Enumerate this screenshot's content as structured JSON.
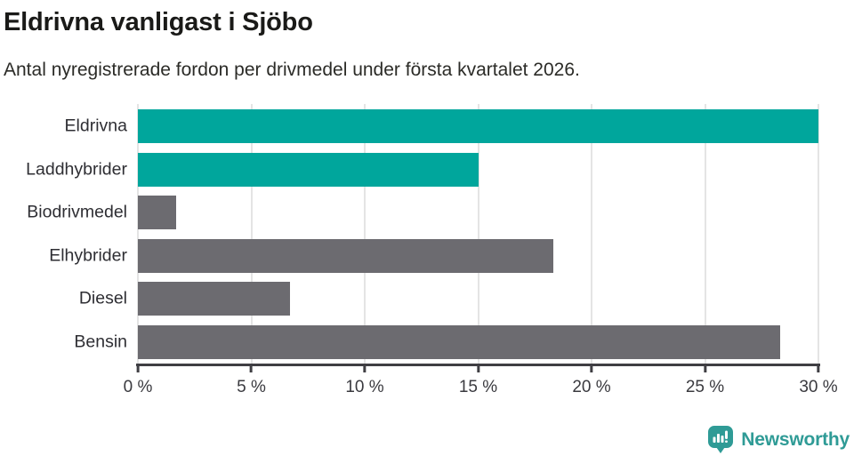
{
  "chart_data": {
    "type": "bar",
    "orientation": "horizontal",
    "title": "Eldrivna vanligast i Sjöbo",
    "subtitle": "Antal nyregistrerade fordon per drivmedel under första kvartalet 2026.",
    "categories": [
      "Eldrivna",
      "Laddhybrider",
      "Biodrivmedel",
      "Elhybrider",
      "Diesel",
      "Bensin"
    ],
    "values": [
      30,
      15,
      1.7,
      18.3,
      6.7,
      28.3
    ],
    "unit": "%",
    "bar_colors": [
      "#00a69c",
      "#00a69c",
      "#6c6b70",
      "#6c6b70",
      "#6c6b70",
      "#6c6b70"
    ],
    "xlabel": "",
    "ylabel": "",
    "xlim": [
      0,
      30
    ],
    "x_ticks": [
      "0 %",
      "5 %",
      "10 %",
      "15 %",
      "20 %",
      "25 %",
      "30 %"
    ],
    "x_tick_values": [
      0,
      5,
      10,
      15,
      20,
      25,
      30
    ],
    "grid": "vertical",
    "legend": "none"
  },
  "footer": {
    "brand": "Newsworthy",
    "brand_color": "#2f9b96",
    "logo_icon": "bar-chart-speech-bubble-icon"
  },
  "colors": {
    "accent_teal": "#00a69c",
    "neutral_gray": "#6c6b70",
    "axis": "#3f3e43",
    "gridline": "#e4e4e4",
    "title_text": "#1a1a18",
    "background": "#ffffff"
  }
}
